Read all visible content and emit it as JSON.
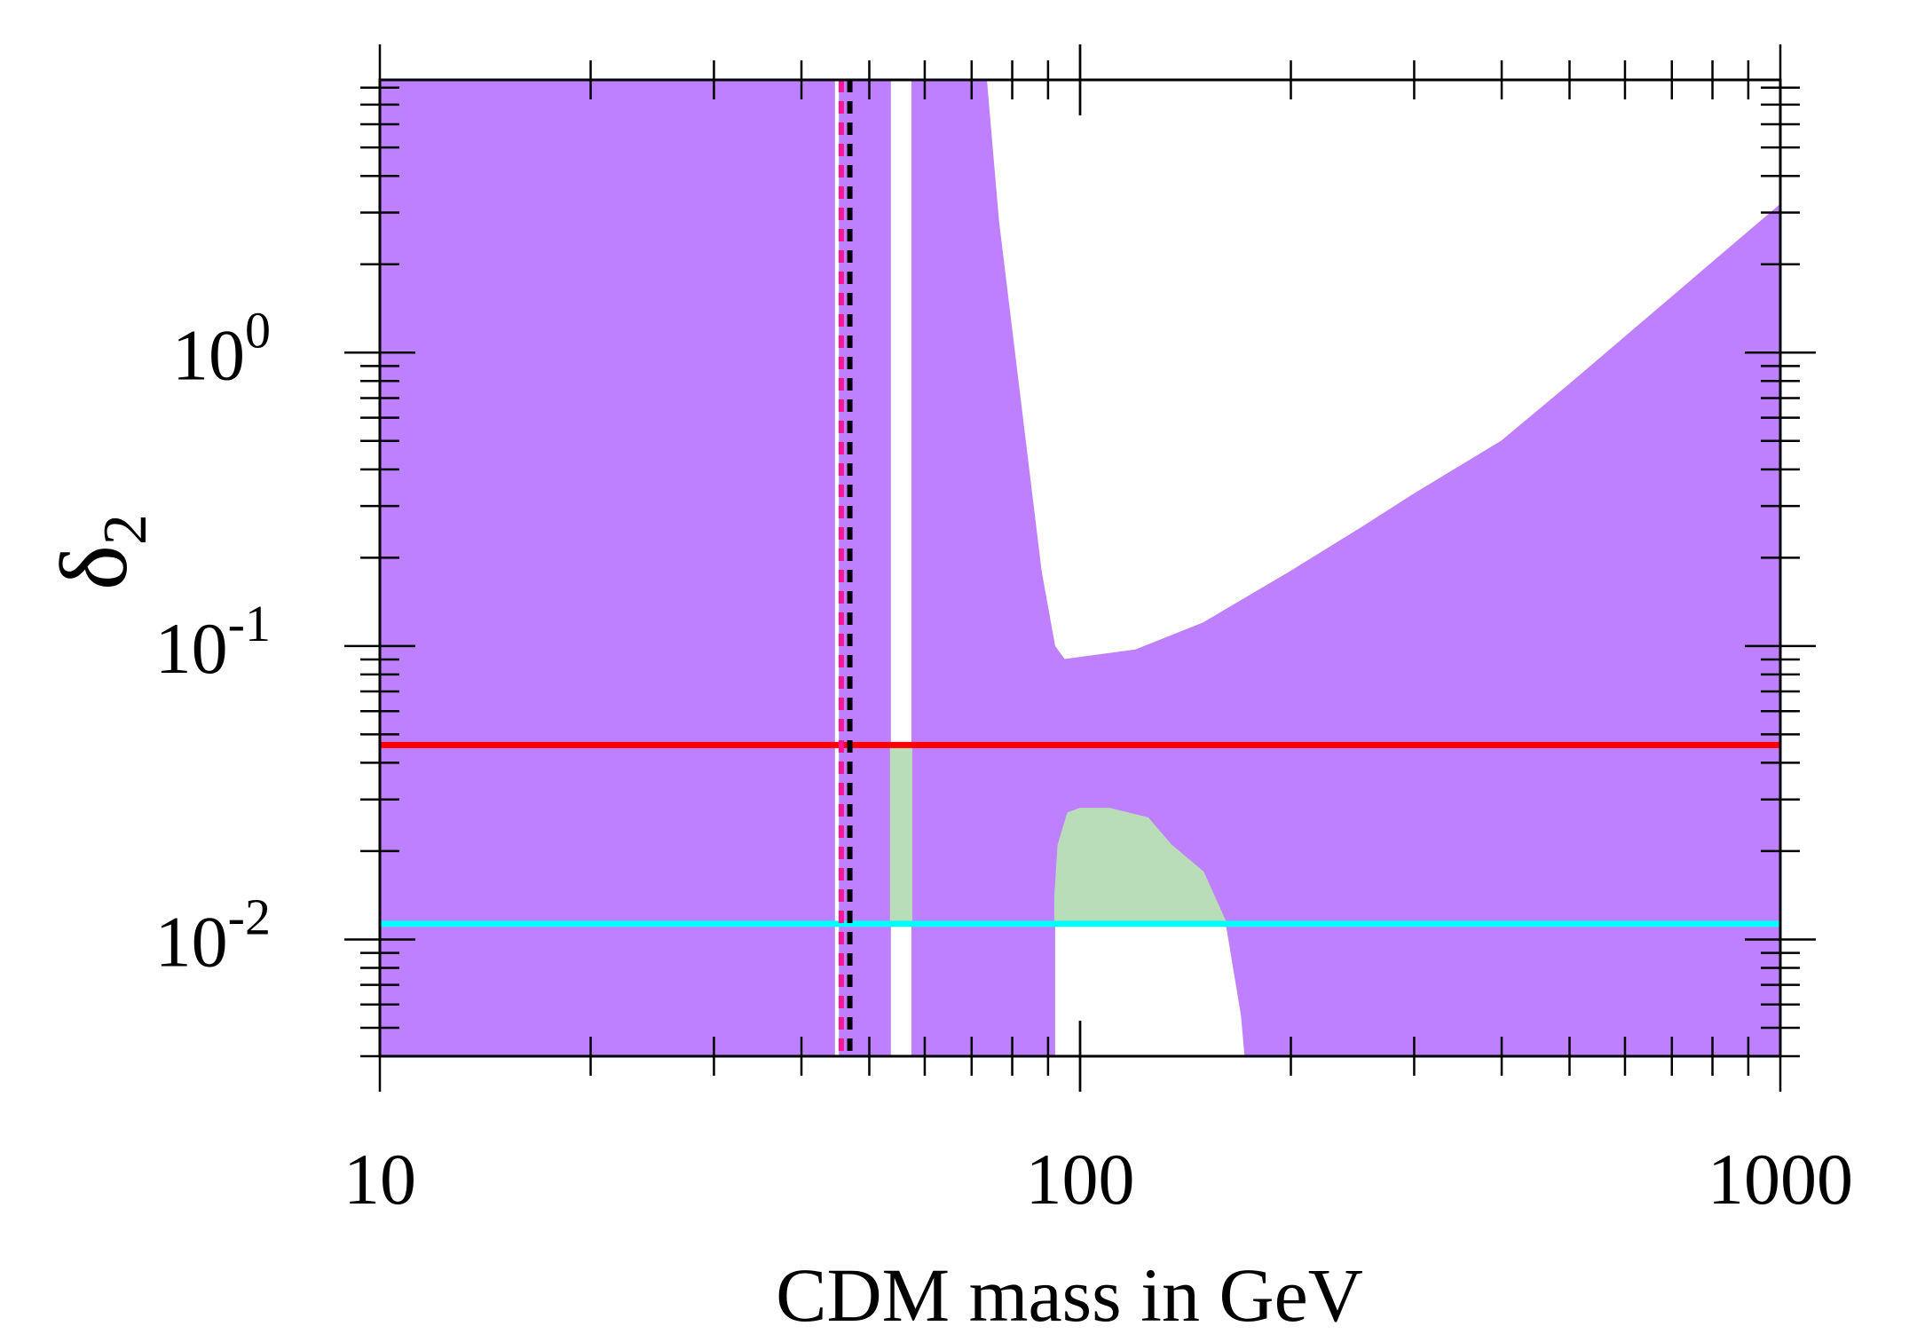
{
  "chart_data": {
    "type": "area",
    "x_scale": "log",
    "y_scale": "log",
    "xlim": [
      10,
      1000
    ],
    "ylim": [
      0.004,
      8.5
    ],
    "xlabel": "CDM mass in GeV",
    "ylabel": "δ",
    "ylabel_sub": "2",
    "x_ticks": [
      {
        "value": 10,
        "label": "10"
      },
      {
        "value": 100,
        "label": "100"
      },
      {
        "value": 1000,
        "label": "1000"
      }
    ],
    "y_ticks": [
      {
        "value": 1,
        "base": "10",
        "exp": "0"
      },
      {
        "value": 0.1,
        "base": "10",
        "exp": "-1"
      },
      {
        "value": 0.01,
        "base": "10",
        "exp": "-2"
      }
    ],
    "grid": false,
    "colors": {
      "excluded_region": "#bf80ff",
      "allowed_region": "#b9dcb9",
      "red_line": "#ff0000",
      "cyan_line": "#00ffff",
      "pink_dashed": "#ff1493",
      "black_dashed": "#000000"
    },
    "horizontal_lines": [
      {
        "color": "red",
        "y": 0.046
      },
      {
        "color": "cyan",
        "y": 0.0113
      }
    ],
    "vertical_dashed_lines": [
      {
        "color": "pink",
        "x": 45.6
      },
      {
        "color": "black",
        "x": 46.9
      }
    ],
    "regions": [
      {
        "type": "excluded",
        "fill": "#bf80ff",
        "polygon": [
          [
            10,
            8.5
          ],
          [
            44.6,
            8.5
          ],
          [
            44.6,
            0.004
          ],
          [
            10,
            0.004
          ]
        ]
      },
      {
        "type": "excluded",
        "fill": "#bf80ff",
        "polygon": [
          [
            45.3,
            8.5
          ],
          [
            53.6,
            8.5
          ],
          [
            53.6,
            0.004
          ],
          [
            45.3,
            0.004
          ]
        ]
      },
      {
        "type": "excluded",
        "fill": "#bf80ff",
        "polygon": [
          [
            57.5,
            8.5
          ],
          [
            73.5,
            8.5
          ],
          [
            76.5,
            2.8
          ],
          [
            88,
            0.18
          ],
          [
            92,
            0.1
          ],
          [
            95,
            0.09
          ],
          [
            120,
            0.097
          ],
          [
            150,
            0.12
          ],
          [
            200,
            0.18
          ],
          [
            250,
            0.25
          ],
          [
            300,
            0.33
          ],
          [
            400,
            0.5
          ],
          [
            500,
            0.78
          ],
          [
            1000,
            3.2
          ],
          [
            1000,
            0.004
          ],
          [
            172,
            0.004
          ],
          [
            170,
            0.0055
          ],
          [
            162,
            0.011
          ],
          [
            150,
            0.017
          ],
          [
            135,
            0.021
          ],
          [
            125,
            0.026
          ],
          [
            110,
            0.028
          ],
          [
            100,
            0.028
          ],
          [
            96,
            0.027
          ],
          [
            93,
            0.021
          ],
          [
            92,
            0.014
          ],
          [
            92,
            0.004
          ],
          [
            57.5,
            0.004
          ]
        ]
      },
      {
        "type": "allowed",
        "fill": "#b9dcb9",
        "polygon": [
          [
            53.6,
            0.046
          ],
          [
            57.5,
            0.046
          ],
          [
            57.5,
            0.0113
          ],
          [
            53.6,
            0.0113
          ]
        ]
      },
      {
        "type": "allowed",
        "fill": "#b9dcb9",
        "polygon": [
          [
            92,
            0.0113
          ],
          [
            92,
            0.014
          ],
          [
            93,
            0.021
          ],
          [
            96,
            0.027
          ],
          [
            100,
            0.028
          ],
          [
            110,
            0.028
          ],
          [
            125,
            0.026
          ],
          [
            135,
            0.021
          ],
          [
            150,
            0.017
          ],
          [
            162,
            0.0113
          ]
        ]
      }
    ]
  }
}
